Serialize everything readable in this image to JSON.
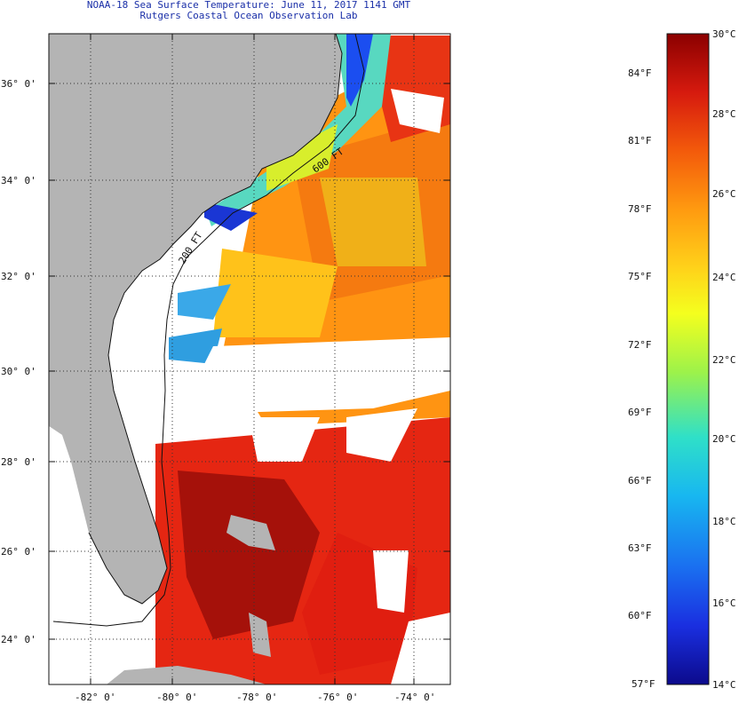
{
  "title": {
    "line1": "NOAA-18 Sea Surface Temperature:  June 11, 2017 1141 GMT",
    "line2": "Rutgers Coastal Ocean Observation Lab"
  },
  "map": {
    "lat_labels": [
      "36° 0'",
      "34° 0'",
      "32° 0'",
      "30° 0'",
      "28° 0'",
      "26° 0'",
      "24° 0'"
    ],
    "lon_labels": [
      "-82° 0'",
      "-80° 0'",
      "-78° 0'",
      "-76° 0'",
      "-74° 0'"
    ],
    "contour_labels": [
      "200 FT",
      "600 FT"
    ],
    "colors": {
      "land": "#b4b4b4",
      "cloud": "#ffffff",
      "coast": "#111111",
      "grid": "#333333"
    }
  },
  "colorbar": {
    "celsius_labels": [
      "30°C",
      "28°C",
      "26°C",
      "24°C",
      "22°C",
      "20°C",
      "18°C",
      "16°C",
      "14°C"
    ],
    "fahrenheit_labels": [
      "84°F",
      "81°F",
      "78°F",
      "75°F",
      "72°F",
      "69°F",
      "66°F",
      "63°F",
      "60°F",
      "57°F"
    ],
    "stops": [
      "#8b0000",
      "#d61a0e",
      "#f35a0b",
      "#ff9a10",
      "#ffd21a",
      "#f4ff1e",
      "#9df24a",
      "#2fe0c8",
      "#18b7f0",
      "#1a6ff0",
      "#1a2fe0",
      "#0c0a8c"
    ]
  }
}
